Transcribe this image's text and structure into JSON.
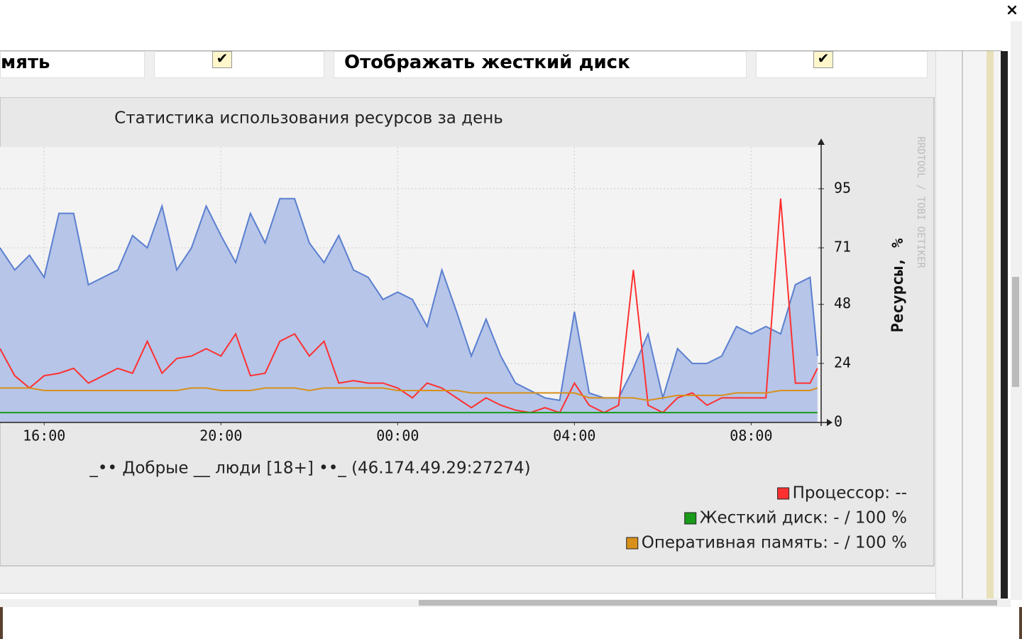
{
  "ui": {
    "close": "×",
    "row_left": "мять",
    "row_label": "Отображать жесткий диск",
    "check": "✔"
  },
  "chart_data": {
    "type": "line",
    "title": "Статистика использования ресурсов за день",
    "subtitle": "_•• Добрые  __ люди [18+] ••_ (46.174.49.29:27274)",
    "y_label": "Ресурсы, %",
    "watermark": "RRDTOOL / TOBI OETIKER",
    "x": [
      "15:00",
      "15:20",
      "15:40",
      "16:00",
      "16:20",
      "16:40",
      "17:00",
      "17:20",
      "17:40",
      "18:00",
      "18:20",
      "18:40",
      "19:00",
      "19:20",
      "19:40",
      "20:00",
      "20:20",
      "20:40",
      "21:00",
      "21:20",
      "21:40",
      "22:00",
      "22:20",
      "22:40",
      "23:00",
      "23:20",
      "23:40",
      "00:00",
      "00:20",
      "00:40",
      "01:00",
      "01:20",
      "01:40",
      "02:00",
      "02:20",
      "02:40",
      "03:00",
      "03:20",
      "03:40",
      "04:00",
      "04:20",
      "04:40",
      "05:00",
      "05:20",
      "05:40",
      "06:00",
      "06:20",
      "06:40",
      "07:00",
      "07:20",
      "07:40",
      "08:00",
      "08:20",
      "08:40",
      "09:00",
      "09:20",
      "09:30"
    ],
    "xlim": [
      "15:00",
      "09:35"
    ],
    "xticks": [
      "16:00",
      "20:00",
      "00:00",
      "04:00",
      "08:00"
    ],
    "ylim": [
      0,
      112
    ],
    "yticks": [
      0,
      24,
      48,
      71,
      95
    ],
    "grid": true,
    "series": [
      {
        "color": "#5b7fd0",
        "fill": "#b6c5e8",
        "area": true,
        "values": [
          71,
          62,
          68,
          59,
          85,
          85,
          56,
          59,
          62,
          76,
          71,
          88,
          62,
          71,
          88,
          76,
          65,
          85,
          73,
          91,
          91,
          73,
          65,
          76,
          62,
          59,
          50,
          53,
          50,
          39,
          62,
          45,
          27,
          42,
          27,
          16,
          13,
          10,
          9,
          45,
          12,
          10,
          10,
          22,
          36,
          10,
          30,
          24,
          24,
          27,
          39,
          36,
          39,
          36,
          56,
          59,
          27
        ]
      },
      {
        "name": "Процессор: --",
        "color": "#ff3030",
        "values": [
          30,
          19,
          14,
          19,
          20,
          22,
          16,
          19,
          22,
          20,
          33,
          20,
          26,
          27,
          30,
          27,
          36,
          19,
          20,
          33,
          36,
          27,
          33,
          16,
          17,
          16,
          16,
          14,
          10,
          16,
          14,
          10,
          6,
          10,
          7,
          5,
          4,
          6,
          4,
          16,
          7,
          4,
          7,
          62,
          7,
          4,
          10,
          12,
          7,
          10,
          10,
          10,
          10,
          91,
          16,
          16,
          22
        ]
      },
      {
        "name": "Жесткий диск: - / 100 %",
        "color": "#1a9a1a",
        "values": [
          4,
          4,
          4,
          4,
          4,
          4,
          4,
          4,
          4,
          4,
          4,
          4,
          4,
          4,
          4,
          4,
          4,
          4,
          4,
          4,
          4,
          4,
          4,
          4,
          4,
          4,
          4,
          4,
          4,
          4,
          4,
          4,
          4,
          4,
          4,
          4,
          4,
          4,
          4,
          4,
          4,
          4,
          4,
          4,
          4,
          4,
          4,
          4,
          4,
          4,
          4,
          4,
          4,
          4,
          4,
          4,
          4
        ]
      },
      {
        "name": "Оперативная память: - / 100 %",
        "color": "#d8901a",
        "values": [
          14,
          14,
          14,
          13,
          13,
          13,
          13,
          13,
          13,
          13,
          13,
          13,
          13,
          14,
          14,
          13,
          13,
          13,
          14,
          14,
          14,
          13,
          14,
          14,
          14,
          14,
          14,
          13,
          13,
          13,
          13,
          13,
          12,
          12,
          12,
          12,
          12,
          12,
          12,
          12,
          10,
          10,
          10,
          10,
          9,
          10,
          11,
          11,
          11,
          11,
          12,
          12,
          12,
          13,
          13,
          13,
          14
        ]
      }
    ]
  }
}
